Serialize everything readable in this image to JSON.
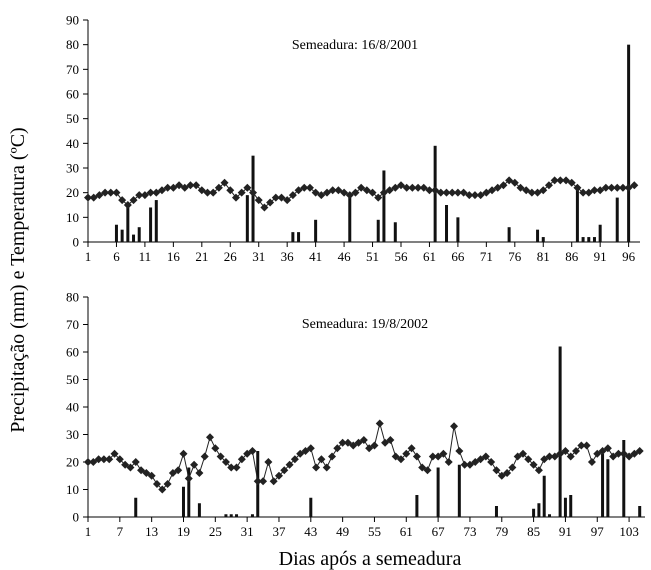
{
  "figure": {
    "y_label": "Precipitação (mm) e Temperatura (ºC)",
    "x_label": "Dias após a semeadura"
  },
  "chart_data": [
    {
      "type": "bar",
      "annotation": "Semeadura: 16/8/2001",
      "ylim": [
        0,
        90
      ],
      "yticks": [
        0,
        10,
        20,
        30,
        40,
        50,
        60,
        70,
        80,
        90
      ],
      "xlim": [
        1,
        98
      ],
      "xticks": [
        1,
        6,
        11,
        16,
        21,
        26,
        31,
        36,
        41,
        46,
        51,
        56,
        61,
        66,
        71,
        76,
        81,
        86,
        91,
        96
      ],
      "grid": false,
      "precipitation": {
        "style": "bars",
        "x": [
          6,
          7,
          8,
          9,
          10,
          12,
          13,
          29,
          30,
          37,
          38,
          41,
          47,
          52,
          53,
          55,
          62,
          64,
          66,
          75,
          80,
          81,
          87,
          88,
          89,
          90,
          91,
          94,
          96
        ],
        "values": [
          7,
          5,
          15,
          3,
          6,
          14,
          17,
          19,
          35,
          4,
          4,
          9,
          18,
          9,
          29,
          8,
          39,
          15,
          10,
          6,
          5,
          2,
          22,
          2,
          2,
          2,
          7,
          18,
          80
        ]
      },
      "temperature": {
        "style": "line-diamond",
        "x": [
          1,
          2,
          3,
          4,
          5,
          6,
          7,
          8,
          9,
          10,
          11,
          12,
          13,
          14,
          15,
          16,
          17,
          18,
          19,
          20,
          21,
          22,
          23,
          24,
          25,
          26,
          27,
          28,
          29,
          30,
          31,
          32,
          33,
          34,
          35,
          36,
          37,
          38,
          39,
          40,
          41,
          42,
          43,
          44,
          45,
          46,
          47,
          48,
          49,
          50,
          51,
          52,
          53,
          54,
          55,
          56,
          57,
          58,
          59,
          60,
          61,
          62,
          63,
          64,
          65,
          66,
          67,
          68,
          69,
          70,
          71,
          72,
          73,
          74,
          75,
          76,
          77,
          78,
          79,
          80,
          81,
          82,
          83,
          84,
          85,
          86,
          87,
          88,
          89,
          90,
          91,
          92,
          93,
          94,
          95,
          96,
          97
        ],
        "values": [
          18,
          18,
          19,
          20,
          20,
          20,
          17,
          15,
          17,
          19,
          19,
          20,
          20,
          21,
          22,
          22,
          23,
          22,
          23,
          23,
          21,
          20,
          20,
          22,
          24,
          21,
          18,
          20,
          22,
          20,
          17,
          14,
          16,
          18,
          18,
          17,
          19,
          21,
          22,
          22,
          20,
          19,
          20,
          21,
          21,
          20,
          19,
          20,
          22,
          21,
          20,
          18,
          20,
          21,
          22,
          23,
          22,
          22,
          22,
          22,
          21,
          21,
          20,
          20,
          20,
          20,
          20,
          19,
          19,
          19,
          20,
          21,
          22,
          23,
          25,
          24,
          22,
          21,
          20,
          20,
          21,
          23,
          25,
          25,
          25,
          24,
          22,
          20,
          20,
          21,
          21,
          22,
          22,
          22,
          22,
          22,
          23
        ]
      }
    },
    {
      "type": "bar",
      "annotation": "Semeadura: 19/8/2002",
      "ylim": [
        0,
        80
      ],
      "yticks": [
        0,
        10,
        20,
        30,
        40,
        50,
        60,
        70,
        80
      ],
      "xlim": [
        1,
        106
      ],
      "xticks": [
        1,
        7,
        13,
        19,
        25,
        31,
        37,
        43,
        49,
        55,
        61,
        67,
        73,
        79,
        85,
        91,
        97,
        103
      ],
      "grid": false,
      "precipitation": {
        "style": "bars",
        "x": [
          10,
          19,
          20,
          22,
          27,
          28,
          29,
          32,
          33,
          43,
          63,
          67,
          71,
          78,
          85,
          86,
          87,
          88,
          90,
          91,
          92,
          98,
          99,
          102,
          105
        ],
        "values": [
          7,
          11,
          18,
          5,
          1,
          1,
          1,
          1,
          24,
          7,
          8,
          18,
          19,
          4,
          3,
          5,
          15,
          1,
          62,
          7,
          8,
          23,
          21,
          28,
          4
        ]
      },
      "temperature": {
        "style": "line-diamond",
        "x": [
          1,
          2,
          3,
          4,
          5,
          6,
          7,
          8,
          9,
          10,
          11,
          12,
          13,
          14,
          15,
          16,
          17,
          18,
          19,
          20,
          21,
          22,
          23,
          24,
          25,
          26,
          27,
          28,
          29,
          30,
          31,
          32,
          33,
          34,
          35,
          36,
          37,
          38,
          39,
          40,
          41,
          42,
          43,
          44,
          45,
          46,
          47,
          48,
          49,
          50,
          51,
          52,
          53,
          54,
          55,
          56,
          57,
          58,
          59,
          60,
          61,
          62,
          63,
          64,
          65,
          66,
          67,
          68,
          69,
          70,
          71,
          72,
          73,
          74,
          75,
          76,
          77,
          78,
          79,
          80,
          81,
          82,
          83,
          84,
          85,
          86,
          87,
          88,
          89,
          90,
          91,
          92,
          93,
          94,
          95,
          96,
          97,
          98,
          99,
          100,
          101,
          102,
          103,
          104,
          105
        ],
        "values": [
          20,
          20,
          21,
          21,
          21,
          23,
          21,
          19,
          18,
          20,
          17,
          16,
          15,
          12,
          10,
          12,
          16,
          17,
          23,
          14,
          19,
          16,
          22,
          29,
          25,
          22,
          20,
          18,
          18,
          21,
          23,
          24,
          13,
          13,
          20,
          13,
          15,
          17,
          19,
          21,
          23,
          24,
          25,
          18,
          21,
          18,
          22,
          25,
          27,
          27,
          26,
          27,
          28,
          25,
          26,
          34,
          27,
          28,
          22,
          21,
          23,
          25,
          22,
          18,
          17,
          22,
          22,
          23,
          20,
          33,
          24,
          19,
          19,
          20,
          21,
          22,
          20,
          17,
          15,
          16,
          18,
          22,
          23,
          21,
          19,
          17,
          21,
          22,
          22,
          23,
          24,
          22,
          24,
          26,
          26,
          20,
          23,
          24,
          25,
          22,
          23,
          23,
          22,
          23,
          24
        ]
      }
    }
  ]
}
